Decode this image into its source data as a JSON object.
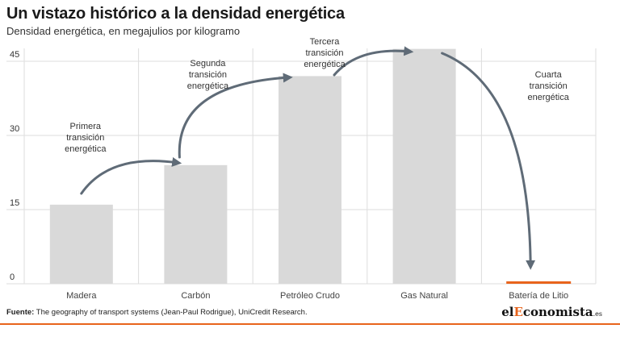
{
  "header": {
    "title": "Un vistazo histórico a la densidad energética",
    "subtitle": "Densidad energética, en megajulios por kilogramo"
  },
  "footer": {
    "source_label": "Fuente:",
    "source_text": "The geography of transport systems (Jean-Paul Rodrigue), UniCredit Research.",
    "logo_prefix": "el",
    "logo_accent": "E",
    "logo_rest": "conomista",
    "logo_suffix": ".es"
  },
  "colors": {
    "bar": "#d9d9d9",
    "highlight_bar": "#e8641c",
    "arrow": "#5f6b77",
    "grid": "#dddddd",
    "accent": "#e8641c"
  },
  "chart_data": {
    "type": "bar",
    "categories": [
      "Madera",
      "Carbón",
      "Petróleo Crudo",
      "Gas Natural",
      "Batería de Litio"
    ],
    "values": [
      16,
      24,
      42,
      47.5,
      0.5
    ],
    "ylim": [
      0,
      48
    ],
    "yticks": [
      0,
      15,
      30,
      45
    ],
    "grid": true,
    "annotations": [
      {
        "lines": [
          "Primera",
          "transición",
          "energética"
        ],
        "from": 0,
        "to": 1
      },
      {
        "lines": [
          "Segunda",
          "transición",
          "energética"
        ],
        "from": 1,
        "to": 2
      },
      {
        "lines": [
          "Tercera",
          "transición",
          "energética"
        ],
        "from": 2,
        "to": 3
      },
      {
        "lines": [
          "Cuarta",
          "transición",
          "energética"
        ],
        "from": 3,
        "to": 4
      }
    ]
  }
}
